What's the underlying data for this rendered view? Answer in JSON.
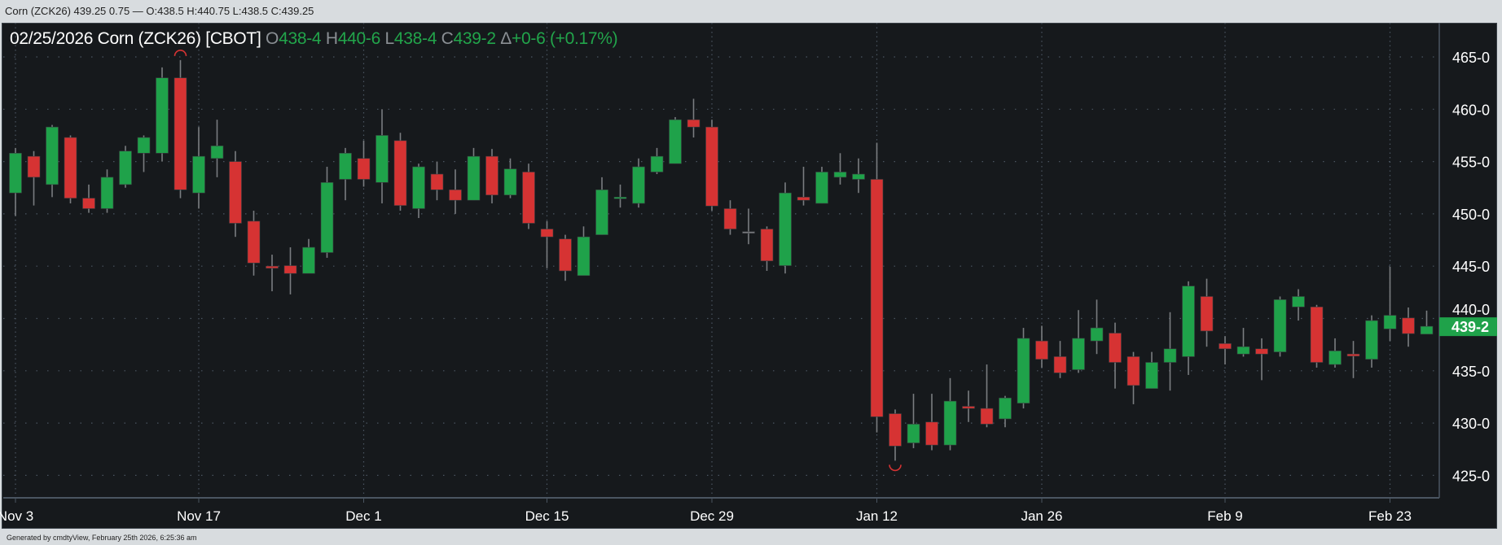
{
  "top_bar": {
    "text": "Corn (ZCK26) 439.25 0.75 — O:438.5 H:440.75 L:438.5 C:439.25"
  },
  "header": {
    "date": "02/25/2026",
    "instrument": "Corn (ZCK26) [CBOT]",
    "open_label": "O",
    "open_value": "438-4",
    "high_label": "H",
    "high_value": "440-6",
    "low_label": "L",
    "low_value": "438-4",
    "close_label": "C",
    "close_value": "439-2",
    "change_label": "Δ",
    "change_value": "+0-6 (+0.17%)"
  },
  "footer": {
    "text": "Generated by cmdtyView, February 25th 2026, 6:25:36 am"
  },
  "colors": {
    "up": "#1fa24a",
    "down": "#d63333",
    "wick": "#7a7d80",
    "background": "#16191c",
    "grid": "#4a5561",
    "last_price_bg": "#1fa24a"
  },
  "chart_data": {
    "type": "candlestick",
    "title": "Corn (ZCK26) [CBOT]",
    "ylim": [
      423,
      467
    ],
    "y_ticks": [
      {
        "value": 465,
        "label": "465-0"
      },
      {
        "value": 460,
        "label": "460-0"
      },
      {
        "value": 455,
        "label": "455-0"
      },
      {
        "value": 450,
        "label": "450-0"
      },
      {
        "value": 445,
        "label": "445-0"
      },
      {
        "value": 440,
        "label": "440-0"
      },
      {
        "value": 435,
        "label": "435-0"
      },
      {
        "value": 430,
        "label": "430-0"
      },
      {
        "value": 425,
        "label": "425-0"
      }
    ],
    "x_ticks": [
      "Nov 3",
      "Nov 17",
      "Dec 1",
      "Dec 15",
      "Dec 29",
      "Jan 12",
      "Jan 26",
      "Feb 9",
      "Feb 23"
    ],
    "last_price": {
      "value": 439.25,
      "label": "439-2"
    },
    "markers": [
      {
        "date": "Nov 14",
        "type": "high"
      },
      {
        "date": "Jan 13",
        "type": "low"
      }
    ],
    "columns": [
      "date",
      "open",
      "high",
      "low",
      "close"
    ],
    "candles": [
      [
        "Nov 3",
        452.0,
        456.3,
        449.8,
        455.8
      ],
      [
        "Nov 4",
        455.5,
        456.0,
        450.8,
        453.5
      ],
      [
        "Nov 5",
        452.8,
        458.5,
        451.6,
        458.3
      ],
      [
        "Nov 6",
        457.3,
        457.5,
        451.0,
        451.5
      ],
      [
        "Nov 7",
        451.5,
        452.8,
        450.1,
        450.5
      ],
      [
        "Nov 10",
        450.5,
        454.25,
        450.1,
        453.5
      ],
      [
        "Nov 11",
        452.8,
        456.5,
        452.5,
        456.0
      ],
      [
        "Nov 12",
        455.8,
        457.5,
        454.0,
        457.3
      ],
      [
        "Nov 13",
        455.8,
        464.0,
        455.0,
        463.0
      ],
      [
        "Nov 14",
        463.0,
        464.7,
        451.5,
        452.3
      ],
      [
        "Nov 17",
        452.0,
        458.3,
        450.5,
        455.5
      ],
      [
        "Nov 18",
        455.3,
        459.0,
        453.5,
        456.5
      ],
      [
        "Nov 19",
        455.0,
        456.0,
        447.8,
        449.1
      ],
      [
        "Nov 20",
        449.3,
        450.3,
        444.1,
        445.3
      ],
      [
        "Nov 21",
        445.0,
        446.1,
        442.6,
        444.8
      ],
      [
        "Nov 24",
        445.05,
        446.8,
        442.3,
        444.3
      ],
      [
        "Nov 25",
        444.3,
        447.6,
        444.3,
        446.8
      ],
      [
        "Nov 26",
        446.3,
        454.5,
        445.8,
        453.0
      ],
      [
        "Nov 28",
        453.3,
        456.3,
        451.3,
        455.8
      ],
      [
        "Dec 1",
        455.3,
        457.0,
        452.6,
        453.3
      ],
      [
        "Dec 2",
        453.0,
        460.0,
        451.0,
        457.5
      ],
      [
        "Dec 3",
        457.0,
        457.75,
        450.3,
        450.8
      ],
      [
        "Dec 4",
        450.5,
        454.8,
        449.6,
        454.5
      ],
      [
        "Dec 5",
        453.8,
        455.0,
        451.3,
        452.3
      ],
      [
        "Dec 8",
        452.3,
        454.25,
        450.0,
        451.3
      ],
      [
        "Dec 9",
        451.3,
        456.3,
        451.3,
        455.5
      ],
      [
        "Dec 10",
        455.5,
        456.2,
        451.0,
        451.8
      ],
      [
        "Dec 11",
        451.8,
        455.3,
        451.5,
        454.3
      ],
      [
        "Dec 12",
        454.0,
        454.8,
        448.55,
        449.1
      ],
      [
        "Dec 15",
        448.55,
        449.3,
        444.8,
        447.8
      ],
      [
        "Dec 16",
        447.6,
        448.0,
        443.6,
        444.55
      ],
      [
        "Dec 17",
        444.1,
        448.8,
        444.1,
        447.8
      ],
      [
        "Dec 18",
        448.0,
        453.5,
        448.0,
        452.3
      ],
      [
        "Dec 19",
        451.5,
        452.8,
        450.6,
        451.6
      ],
      [
        "Dec 22",
        451.0,
        455.3,
        450.6,
        454.5
      ],
      [
        "Dec 23",
        454.0,
        456.3,
        453.8,
        455.5
      ],
      [
        "Dec 24",
        454.8,
        459.25,
        454.8,
        459.0
      ],
      [
        "Dec 26",
        459.0,
        461.0,
        457.3,
        458.3
      ],
      [
        "Dec 29",
        458.3,
        459.0,
        450.3,
        450.75
      ],
      [
        "Dec 30",
        450.5,
        451.3,
        448.0,
        448.55
      ],
      [
        "Dec 31",
        448.3,
        450.5,
        447.1,
        448.3
      ],
      [
        "Jan 2",
        448.55,
        448.8,
        444.55,
        445.5
      ],
      [
        "Jan 5",
        445.05,
        453.0,
        444.3,
        452.0
      ],
      [
        "Jan 6",
        451.6,
        454.5,
        450.8,
        451.3
      ],
      [
        "Jan 7",
        451.0,
        454.5,
        451.0,
        454.0
      ],
      [
        "Jan 8",
        453.5,
        455.8,
        452.8,
        454.0
      ],
      [
        "Jan 9",
        453.3,
        455.3,
        452.0,
        453.8
      ],
      [
        "Jan 12",
        453.3,
        456.8,
        429.1,
        430.6
      ],
      [
        "Jan 13",
        430.9,
        431.3,
        426.4,
        427.8
      ],
      [
        "Jan 14",
        428.1,
        432.8,
        427.6,
        429.9
      ],
      [
        "Jan 15",
        430.1,
        432.8,
        427.4,
        427.9
      ],
      [
        "Jan 16",
        427.9,
        434.3,
        427.4,
        432.1
      ],
      [
        "Jan 20",
        431.6,
        433.1,
        430.1,
        431.4
      ],
      [
        "Jan 21",
        431.4,
        435.6,
        429.6,
        429.9
      ],
      [
        "Jan 22",
        430.4,
        432.6,
        429.6,
        432.4
      ],
      [
        "Jan 23",
        431.9,
        439.1,
        431.4,
        438.1
      ],
      [
        "Jan 26",
        437.85,
        439.3,
        435.3,
        436.1
      ],
      [
        "Jan 27",
        436.35,
        437.85,
        434.3,
        434.8
      ],
      [
        "Jan 28",
        435.1,
        440.8,
        434.8,
        438.1
      ],
      [
        "Jan 29",
        437.85,
        441.8,
        436.6,
        439.1
      ],
      [
        "Jan 30",
        438.6,
        439.6,
        433.3,
        435.8
      ],
      [
        "Feb 2",
        436.35,
        436.8,
        431.8,
        433.6
      ],
      [
        "Feb 3",
        433.3,
        436.8,
        433.3,
        435.8
      ],
      [
        "Feb 4",
        435.8,
        440.6,
        433.1,
        437.1
      ],
      [
        "Feb 5",
        436.35,
        443.55,
        434.6,
        443.1
      ],
      [
        "Feb 6",
        442.1,
        443.8,
        437.3,
        438.8
      ],
      [
        "Feb 9",
        437.6,
        438.3,
        435.6,
        437.1
      ],
      [
        "Feb 10",
        436.6,
        439.1,
        436.35,
        437.3
      ],
      [
        "Feb 11",
        437.1,
        438.1,
        434.1,
        436.6
      ],
      [
        "Feb 12",
        436.8,
        442.1,
        436.35,
        441.8
      ],
      [
        "Feb 13",
        441.1,
        442.8,
        439.8,
        442.1
      ],
      [
        "Feb 17",
        441.1,
        441.3,
        435.3,
        435.8
      ],
      [
        "Feb 18",
        435.6,
        438.1,
        435.3,
        436.9
      ],
      [
        "Feb 19",
        436.6,
        437.85,
        434.3,
        436.4
      ],
      [
        "Feb 20",
        436.1,
        440.3,
        435.3,
        439.8
      ],
      [
        "Feb 23",
        439.0,
        444.95,
        437.85,
        440.3
      ],
      [
        "Feb 24",
        440.05,
        441.05,
        437.3,
        438.55
      ],
      [
        "Feb 25",
        438.5,
        440.75,
        438.5,
        439.25
      ]
    ]
  }
}
